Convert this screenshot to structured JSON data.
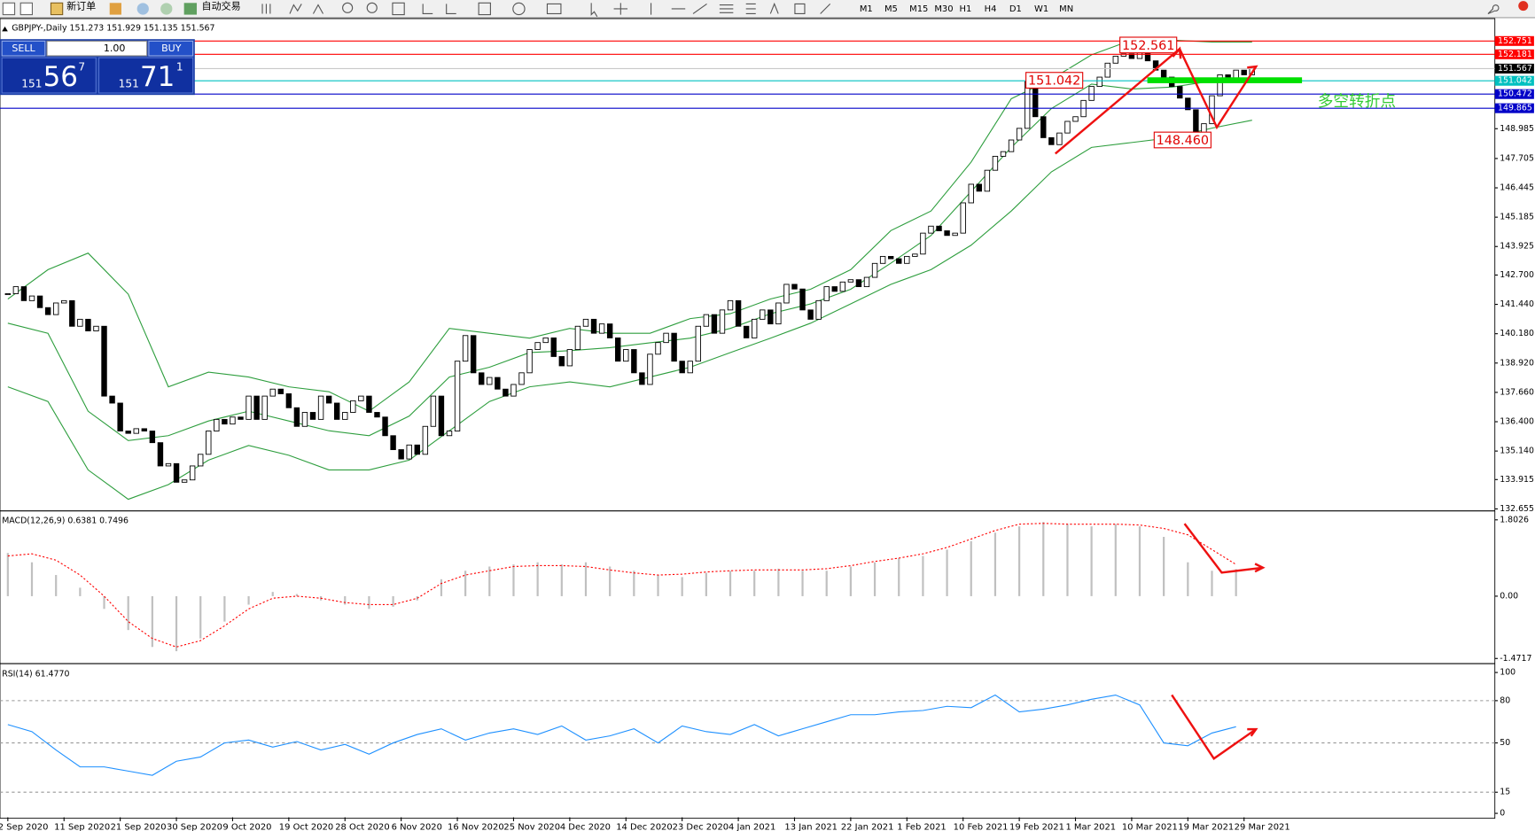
{
  "toolbar": {
    "new_order": "新订单",
    "auto_trading": "自动交易",
    "timeframes": [
      "M1",
      "M5",
      "M15",
      "M30",
      "H1",
      "H4",
      "D1",
      "W1",
      "MN"
    ]
  },
  "trade_panel": {
    "sell": "SELL",
    "lot": "1.00",
    "buy": "BUY",
    "sell_big": "151",
    "sell_pips": "56",
    "sell_frac": "7",
    "buy_big": "151",
    "buy_pips": "71",
    "buy_frac": "1"
  },
  "annotations": {
    "high": "152.561",
    "pivot": "151.042",
    "low": "148.460",
    "turn": "多空转折点"
  },
  "chart_data": [
    {
      "type": "candlestick",
      "title": "GBPJPY-,Daily  151.273 151.929 151.135 151.567",
      "categories": [
        "2 Sep 2020",
        null,
        null,
        null,
        null,
        null,
        null,
        "11 Sep 2020",
        null,
        null,
        null,
        null,
        null,
        null,
        "21 Sep 2020",
        null,
        null,
        null,
        null,
        null,
        null,
        "30 Sep 2020",
        null,
        null,
        null,
        null,
        null,
        null,
        "9 Oct 2020",
        null,
        null,
        null,
        null,
        null,
        null,
        "19 Oct 2020",
        null,
        null,
        null,
        null,
        null,
        null,
        "28 Oct 2020",
        null,
        null,
        null,
        null,
        null,
        null,
        "6 Nov 2020",
        null,
        null,
        null,
        null,
        null,
        null,
        "16 Nov 2020",
        null,
        null,
        null,
        null,
        null,
        null,
        "25 Nov 2020",
        null,
        null,
        null,
        null,
        null,
        null,
        "4 Dec 2020",
        null,
        null,
        null,
        null,
        null,
        null,
        "14 Dec 2020",
        null,
        null,
        null,
        null,
        null,
        null,
        "23 Dec 2020",
        null,
        null,
        null,
        null,
        null,
        null,
        "4 Jan 2021",
        null,
        null,
        null,
        null,
        null,
        null,
        "13 Jan 2021",
        null,
        null,
        null,
        null,
        null,
        null,
        "22 Jan 2021",
        null,
        null,
        null,
        null,
        null,
        null,
        "1 Feb 2021",
        null,
        null,
        null,
        null,
        null,
        null,
        "10 Feb 2021",
        null,
        null,
        null,
        null,
        null,
        null,
        "19 Feb 2021",
        null,
        null,
        null,
        null,
        null,
        null,
        "1 Mar 2021",
        null,
        null,
        null,
        null,
        null,
        null,
        "10 Mar 2021",
        null,
        null,
        null,
        null,
        null,
        null,
        "19 Mar 2021",
        null,
        null,
        null,
        null,
        null,
        null,
        "29 Mar 2021",
        null
      ],
      "close": [
        141.9,
        142.2,
        141.6,
        141.8,
        141.3,
        141.0,
        141.5,
        141.6,
        140.5,
        140.8,
        140.3,
        140.5,
        137.5,
        137.2,
        136,
        135.9,
        136.1,
        136,
        135.5,
        134.5,
        134.6,
        133.8,
        133.9,
        134.5,
        135,
        136,
        136.5,
        136.3,
        136.6,
        136.5,
        137.5,
        136.5,
        137.5,
        137.8,
        137.6,
        137,
        136.2,
        136.8,
        136.5,
        137.5,
        137.2,
        136.5,
        136.8,
        137.3,
        137.5,
        136.8,
        136.6,
        135.8,
        135.2,
        134.8,
        135.4,
        135,
        136.2,
        137.5,
        135.8,
        136,
        139,
        140.1,
        138.5,
        138,
        138.3,
        137.8,
        137.5,
        138,
        138.5,
        139.5,
        139.8,
        140,
        139.2,
        138.8,
        139.5,
        140.5,
        140.8,
        140.2,
        140.6,
        140,
        139,
        139.5,
        138.5,
        138,
        139.3,
        139.8,
        140.2,
        139,
        138.5,
        139,
        140.5,
        141,
        140.2,
        141.2,
        141.6,
        140.5,
        140,
        140.8,
        141.2,
        140.6,
        141.5,
        142.3,
        142.1,
        141.2,
        140.8,
        141.6,
        142.2,
        142,
        142.4,
        142.5,
        142.2,
        142.6,
        143.2,
        143.5,
        143.4,
        143.2,
        143.5,
        143.6,
        144.5,
        144.8,
        144.6,
        144.4,
        144.5,
        145.8,
        146.6,
        146.3,
        147.2,
        147.8,
        148,
        148.5,
        149,
        151,
        149.5,
        148.6,
        148.3,
        148.8,
        149.3,
        149.5,
        150.2,
        150.8,
        151.2,
        151.8,
        152.1,
        152.2,
        152,
        152.3,
        151.9,
        151.5,
        151.2,
        150.8,
        150.3,
        149.8,
        148.6,
        149.2,
        150.4,
        151.3,
        151.1,
        151.5,
        151.3,
        151.567
      ],
      "bull_color": "#ffffff",
      "bear_color": "#000000",
      "bands": {
        "color": "#2e9e3e",
        "upper": [
          141.67,
          142.93,
          143.64,
          141.88,
          137.9,
          138.53,
          138.32,
          137.9,
          137.69,
          136.85,
          138.11,
          140.41,
          140.2,
          139.99,
          140.41,
          140.2,
          140.2,
          140.83,
          141.04,
          141.67,
          142.09,
          142.93,
          144.61,
          145.45,
          147.55,
          150.27,
          151.11,
          152.16,
          152.79,
          152.79,
          152.71,
          152.71
        ],
        "middle": [
          140.63,
          140.2,
          136.85,
          135.59,
          135.8,
          136.43,
          136.85,
          136.43,
          136.01,
          135.8,
          136.64,
          138.32,
          138.74,
          139.37,
          139.45,
          139.58,
          139.79,
          139.99,
          140.41,
          141.04,
          141.46,
          142.09,
          143.21,
          144.4,
          146.29,
          148.18,
          149.85,
          150.9,
          150.69,
          150.77,
          151.03,
          151.11
        ],
        "lower": [
          137.9,
          137.27,
          134.33,
          133.07,
          133.7,
          134.75,
          135.38,
          134.96,
          134.33,
          134.33,
          134.75,
          136.01,
          137.27,
          137.9,
          138.11,
          137.9,
          138.32,
          138.74,
          139.37,
          139.99,
          140.63,
          141.46,
          142.3,
          142.93,
          143.98,
          145.45,
          147.13,
          148.18,
          148.39,
          148.6,
          149.01,
          149.35
        ]
      },
      "levels": [
        {
          "value": 152.751,
          "color": "#ff0000",
          "line_color": "#ff0000"
        },
        {
          "value": 152.181,
          "color": "#ff0000",
          "line_color": "#ff0000"
        },
        {
          "value": 151.567,
          "color": "#000000",
          "line_color": "#c8c8c8"
        },
        {
          "value": 151.042,
          "color": "#00c0c0",
          "line_color": "#00c0c0"
        },
        {
          "value": 150.472,
          "color": "#0000c8",
          "line_color": "#0000c8"
        },
        {
          "value": 149.865,
          "color": "#0000c8",
          "line_color": "#0000c8"
        }
      ],
      "ylim": [
        132.61,
        153.63
      ],
      "yticks": [
        148.985,
        147.705,
        146.445,
        145.185,
        143.925,
        {
          "value": 142.7,
          "label": "142.700"
        },
        {
          "value": 141.44,
          "label": "141.440"
        },
        {
          "value": 140.18,
          "label": "140.180"
        },
        {
          "value": 138.92,
          "label": "138.920"
        },
        {
          "value": 137.66,
          "label": "137.660"
        },
        {
          "value": 136.4,
          "label": "136.400"
        },
        {
          "value": 135.14,
          "label": "135.140"
        },
        133.915,
        132.655
      ]
    },
    {
      "type": "macd",
      "title": "MACD(12,26,9) 0.6381 0.7496",
      "histogram": {
        "color": "#c0c0c0",
        "values": [
          1.02,
          0.8,
          0.5,
          0.2,
          -0.3,
          -0.8,
          -1.2,
          -1.3,
          -1.0,
          -0.6,
          -0.2,
          0.1,
          0.05,
          -0.1,
          -0.2,
          -0.3,
          -0.25,
          -0.1,
          0.4,
          0.6,
          0.7,
          0.75,
          0.8,
          0.75,
          0.8,
          0.7,
          0.6,
          0.5,
          0.45,
          0.55,
          0.6,
          0.6,
          0.65,
          0.6,
          0.6,
          0.7,
          0.8,
          0.9,
          0.95,
          1.1,
          1.3,
          1.5,
          1.65,
          1.75,
          1.7,
          1.65,
          1.7,
          1.65,
          1.4,
          0.8,
          0.6,
          0.6381
        ]
      },
      "signal": {
        "color": "#ff0000",
        "values": [
          0.95,
          1.0,
          0.85,
          0.5,
          0.0,
          -0.6,
          -1.0,
          -1.2,
          -1.05,
          -0.7,
          -0.3,
          -0.05,
          0.0,
          -0.05,
          -0.15,
          -0.2,
          -0.2,
          -0.05,
          0.3,
          0.5,
          0.6,
          0.7,
          0.72,
          0.72,
          0.7,
          0.62,
          0.55,
          0.5,
          0.52,
          0.57,
          0.6,
          0.62,
          0.62,
          0.62,
          0.65,
          0.72,
          0.82,
          0.9,
          1.0,
          1.15,
          1.35,
          1.55,
          1.7,
          1.72,
          1.7,
          1.7,
          1.7,
          1.68,
          1.6,
          1.45,
          1.1,
          0.7496
        ]
      },
      "ylim": [
        -1.57,
        1.99
      ],
      "yticks": [
        1.8026,
        {
          "value": 0,
          "label": "0.00"
        },
        -1.4717
      ]
    },
    {
      "type": "line",
      "title": "RSI(14) 61.4770",
      "color": "#1e90ff",
      "values": [
        63,
        58,
        45,
        33,
        33,
        30,
        27,
        37,
        40,
        50,
        52,
        47,
        51,
        45,
        49,
        42,
        50,
        56,
        60,
        52,
        57,
        60,
        56,
        62,
        52,
        55,
        60,
        50,
        62,
        58,
        56,
        63,
        55,
        60,
        65,
        70,
        70,
        72,
        73,
        76,
        75,
        84,
        72,
        74,
        77,
        81,
        84,
        77,
        50,
        48,
        57,
        61.477
      ],
      "ylim": [
        -2.8,
        104.9
      ],
      "yticks": [
        100,
        80,
        50,
        15,
        0
      ]
    }
  ]
}
